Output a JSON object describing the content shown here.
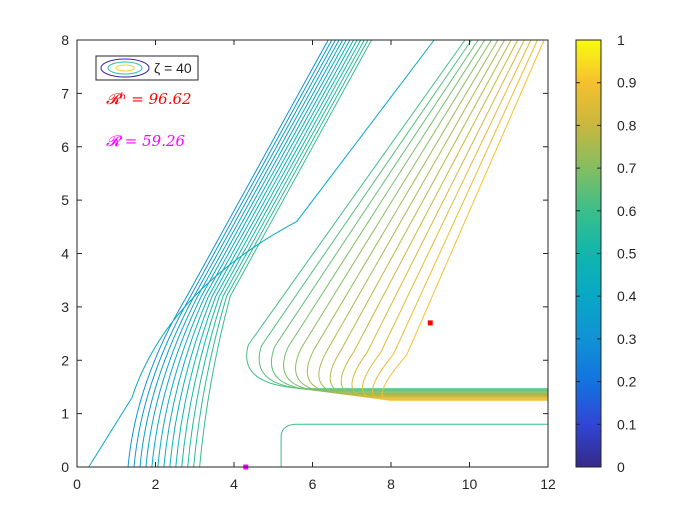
{
  "chart_data": {
    "type": "contour",
    "title": "",
    "xlabel": "",
    "ylabel": "",
    "xlim": [
      0,
      12
    ],
    "ylim": [
      0,
      8
    ],
    "xticks": [
      "0",
      "2",
      "4",
      "6",
      "8",
      "10",
      "12"
    ],
    "yticks": [
      "0",
      "1",
      "2",
      "3",
      "4",
      "5",
      "6",
      "7",
      "8"
    ],
    "colorbar": {
      "limits": [
        0,
        1
      ],
      "ticks": [
        "0",
        "0.1",
        "0.2",
        "0.3",
        "0.4",
        "0.5",
        "0.6",
        "0.7",
        "0.8",
        "0.9",
        "1"
      ],
      "colormap": "parula"
    },
    "legend": {
      "label": "ζ = 40",
      "placement": "top-left"
    },
    "contour_levels": 26,
    "level_range": [
      0.3,
      0.9
    ],
    "annotations": [
      {
        "text": "𝓡ʰ = 96.62",
        "color": "#ff0000"
      },
      {
        "text": "𝓡 = 59.26",
        "color": "#ff00ff"
      }
    ],
    "markers": [
      {
        "name": "red-point",
        "x": 9.0,
        "y": 2.7,
        "color": "#ff0000"
      },
      {
        "name": "magenta-point",
        "x": 4.3,
        "y": 0.0,
        "color": "#ff00ff"
      }
    ]
  }
}
